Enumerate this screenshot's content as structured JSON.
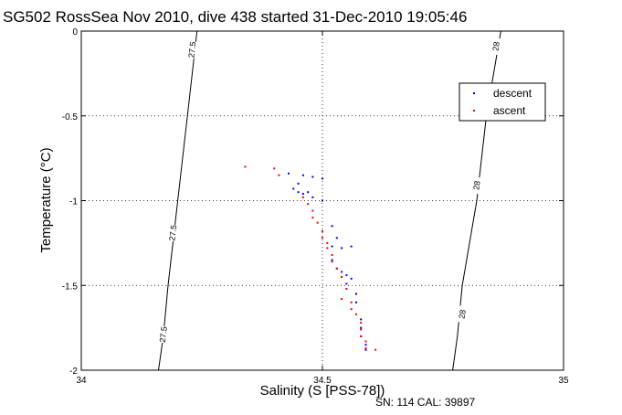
{
  "chart_data": {
    "type": "scatter",
    "title": "SG502 RossSea Nov 2010, dive 438 started 31-Dec-2010 19:05:46",
    "xlabel": "Salinity (S [PSS-78])",
    "ylabel": "Temperature (°C)",
    "xlim": [
      34,
      35
    ],
    "ylim": [
      -2,
      0
    ],
    "x_ticks": [
      "34",
      "34.5",
      "35"
    ],
    "y_ticks": [
      "0",
      "-0.5",
      "-1",
      "-1.5",
      "-2"
    ],
    "grid": true,
    "grid_style": "dotted",
    "legend_position": "top-right",
    "series": [
      {
        "name": "descent",
        "color": "#0000ff",
        "points": [
          [
            34.43,
            -0.84
          ],
          [
            34.46,
            -0.85
          ],
          [
            34.48,
            -0.86
          ],
          [
            34.5,
            -0.87
          ],
          [
            34.45,
            -0.9
          ],
          [
            34.44,
            -0.93
          ],
          [
            34.45,
            -0.95
          ],
          [
            34.46,
            -0.96
          ],
          [
            34.47,
            -0.95
          ],
          [
            34.48,
            -0.98
          ],
          [
            34.5,
            -1.0
          ],
          [
            34.52,
            -1.15
          ],
          [
            34.53,
            -1.22
          ],
          [
            34.52,
            -1.27
          ],
          [
            34.54,
            -1.28
          ],
          [
            34.56,
            -1.27
          ],
          [
            34.52,
            -1.35
          ],
          [
            34.53,
            -1.4
          ],
          [
            34.54,
            -1.42
          ],
          [
            34.55,
            -1.44
          ],
          [
            34.56,
            -1.46
          ],
          [
            34.55,
            -1.49
          ],
          [
            34.57,
            -1.55
          ],
          [
            34.57,
            -1.6
          ],
          [
            34.58,
            -1.7
          ],
          [
            34.58,
            -1.75
          ],
          [
            34.58,
            -1.8
          ],
          [
            34.59,
            -1.85
          ],
          [
            34.59,
            -1.88
          ]
        ]
      },
      {
        "name": "ascent",
        "color": "#ff0000",
        "points": [
          [
            34.34,
            -0.8
          ],
          [
            34.4,
            -0.81
          ],
          [
            34.41,
            -0.85
          ],
          [
            34.46,
            -0.98
          ],
          [
            34.47,
            -1.02
          ],
          [
            34.48,
            -1.06
          ],
          [
            34.48,
            -1.1
          ],
          [
            34.49,
            -1.13
          ],
          [
            34.5,
            -1.18
          ],
          [
            34.5,
            -1.22
          ],
          [
            34.51,
            -1.25
          ],
          [
            34.51,
            -1.28
          ],
          [
            34.52,
            -1.32
          ],
          [
            34.52,
            -1.36
          ],
          [
            34.53,
            -1.4
          ],
          [
            34.54,
            -1.45
          ],
          [
            34.55,
            -1.52
          ],
          [
            34.54,
            -1.58
          ],
          [
            34.56,
            -1.6
          ],
          [
            34.56,
            -1.64
          ],
          [
            34.57,
            -1.67
          ],
          [
            34.58,
            -1.72
          ],
          [
            34.58,
            -1.76
          ],
          [
            34.58,
            -1.8
          ],
          [
            34.59,
            -1.83
          ],
          [
            34.59,
            -1.87
          ],
          [
            34.61,
            -1.88
          ]
        ]
      }
    ],
    "density_contours": [
      {
        "label": "27.5",
        "points": [
          [
            34.16,
            -2.0
          ],
          [
            34.17,
            -1.8
          ],
          [
            34.18,
            -1.5
          ],
          [
            34.2,
            -1.0
          ],
          [
            34.22,
            -0.5
          ],
          [
            34.24,
            0.0
          ]
        ],
        "label_positions": [
          [
            34.17,
            -1.79
          ],
          [
            34.19,
            -1.19
          ],
          [
            34.23,
            -0.11
          ]
        ]
      },
      {
        "label": "28",
        "points": [
          [
            34.77,
            -2.0
          ],
          [
            34.78,
            -1.8
          ],
          [
            34.79,
            -1.5
          ],
          [
            34.82,
            -1.0
          ],
          [
            34.84,
            -0.5
          ],
          [
            34.87,
            0.0
          ]
        ],
        "label_positions": [
          [
            34.79,
            -1.67
          ],
          [
            34.82,
            -0.91
          ],
          [
            34.86,
            -0.09
          ]
        ]
      }
    ],
    "footer": "SN: 114  CAL: 39897"
  }
}
